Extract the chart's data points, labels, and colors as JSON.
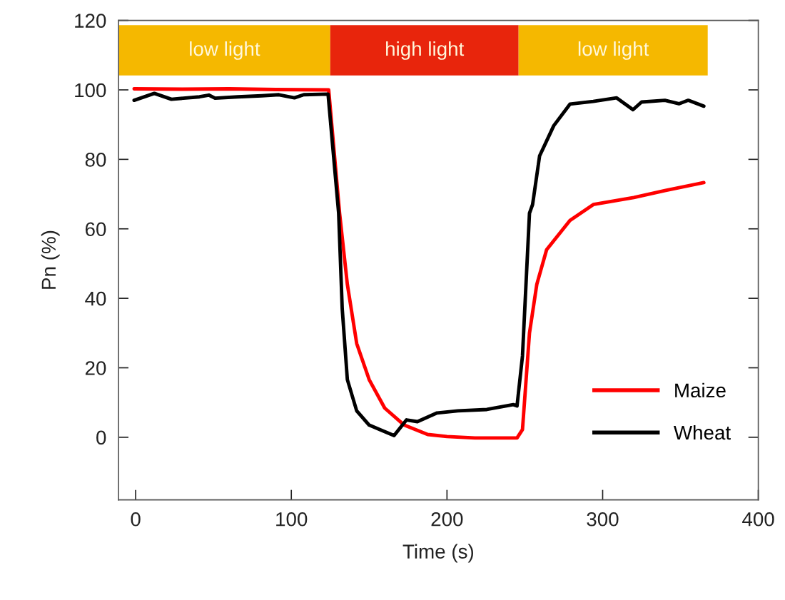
{
  "chart_data": {
    "type": "line",
    "xlabel": "Time (s)",
    "ylabel": "Pn (%)",
    "xlim": [
      -11,
      400
    ],
    "ylim": [
      -18,
      120
    ],
    "xticks": [
      0,
      100,
      200,
      300,
      400
    ],
    "yticks": [
      0,
      20,
      40,
      60,
      80,
      100,
      120
    ],
    "grid": false,
    "legend": "lower right",
    "marker": "none",
    "line_style": "solid",
    "bands": [
      {
        "axis": "x",
        "from": -11,
        "to": 125,
        "label": "low light",
        "color": "#f5b800"
      },
      {
        "axis": "x",
        "from": 125,
        "to": 246,
        "label": "high light",
        "color": "#e8250c"
      },
      {
        "axis": "x",
        "from": 246,
        "to": 367.5,
        "label": "low light",
        "color": "#f5b800"
      }
    ],
    "series": [
      {
        "name": "Maize",
        "color": "#ff0000",
        "x": [
          -1,
          30,
          60,
          90,
          124,
          131,
          136,
          142,
          150,
          160,
          172.5,
          187.6,
          200,
          218,
          245,
          248.5,
          253,
          257.7,
          264,
          279,
          294,
          320,
          340,
          365
        ],
        "values": [
          100.3,
          100.2,
          100.3,
          100.1,
          100,
          64.5,
          44,
          27,
          16.6,
          8.4,
          3.5,
          0.8,
          0.2,
          -0.2,
          -0.2,
          2.2,
          30,
          44,
          54,
          62.4,
          67,
          69,
          71,
          73.3
        ]
      },
      {
        "name": "Wheat",
        "color": "#000000",
        "x": [
          -1,
          12,
          23,
          41,
          47,
          51,
          65.6,
          81,
          92,
          102,
          108,
          123.6,
          130.4,
          132.7,
          136,
          142,
          150,
          157,
          166,
          174,
          181,
          193.6,
          207,
          225.6,
          242.6,
          245,
          248.5,
          253,
          255,
          259.5,
          268.6,
          279,
          294,
          309,
          319.5,
          325,
          340,
          349,
          355,
          365
        ],
        "values": [
          97,
          99,
          97.3,
          98,
          98.5,
          97.6,
          98,
          98.3,
          98.6,
          97.7,
          98.6,
          98.8,
          64.5,
          37,
          16.6,
          7.6,
          3.5,
          2.2,
          0.5,
          5,
          4.5,
          7,
          7.6,
          8,
          9.4,
          9,
          23.4,
          64.5,
          67,
          81,
          89.7,
          95.9,
          96.7,
          97.7,
          94.3,
          96.5,
          97,
          96,
          97,
          95.3
        ]
      }
    ]
  }
}
